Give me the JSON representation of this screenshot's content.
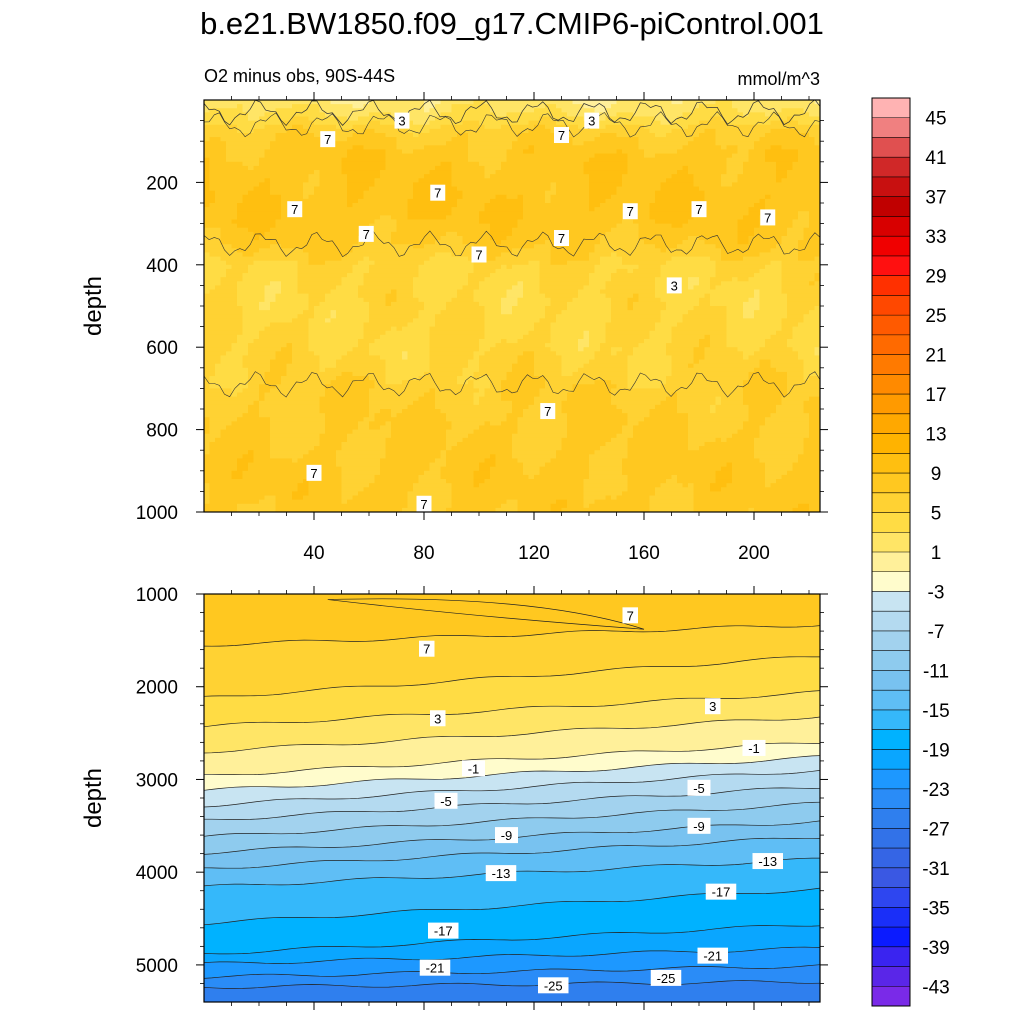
{
  "title": "b.e21.BW1850.f09_g17.CMIP6-piControl.001",
  "chart_data": [
    {
      "type": "heatmap",
      "panel": "top",
      "left_label": "O2 minus obs, 90S-44S",
      "right_label": "mmol/m^3",
      "ylabel": "depth",
      "xlim": [
        0,
        224
      ],
      "ylim": [
        0,
        1000
      ],
      "y_reversed": true,
      "xticks": [
        40,
        80,
        120,
        160,
        200
      ],
      "yticks": [
        200,
        400,
        600,
        800,
        1000
      ],
      "depth_profile": {
        "depth": [
          0,
          25,
          50,
          80,
          120,
          160,
          200,
          240,
          300,
          350,
          380,
          400,
          450,
          500,
          550,
          600,
          650,
          700,
          750,
          800,
          850,
          900,
          950,
          1000
        ],
        "value": [
          1.5,
          2.5,
          4.0,
          6.5,
          7.8,
          8.3,
          8.6,
          8.7,
          8.2,
          7.2,
          6.2,
          5.2,
          4.8,
          4.8,
          4.9,
          5.0,
          5.5,
          6.4,
          6.9,
          7.2,
          7.4,
          7.5,
          7.6,
          7.6
        ]
      },
      "contour_labels": [
        {
          "x": 45,
          "y": 95,
          "text": "7"
        },
        {
          "x": 72,
          "y": 50,
          "text": "3"
        },
        {
          "x": 130,
          "y": 85,
          "text": "7"
        },
        {
          "x": 141,
          "y": 50,
          "text": "3"
        },
        {
          "x": 33,
          "y": 265,
          "text": "7"
        },
        {
          "x": 85,
          "y": 225,
          "text": "7"
        },
        {
          "x": 59,
          "y": 325,
          "text": "7"
        },
        {
          "x": 100,
          "y": 375,
          "text": "7"
        },
        {
          "x": 130,
          "y": 335,
          "text": "7"
        },
        {
          "x": 155,
          "y": 270,
          "text": "7"
        },
        {
          "x": 180,
          "y": 265,
          "text": "7"
        },
        {
          "x": 205,
          "y": 285,
          "text": "7"
        },
        {
          "x": 171,
          "y": 450,
          "text": "3"
        },
        {
          "x": 125,
          "y": 755,
          "text": "7"
        },
        {
          "x": 40,
          "y": 905,
          "text": "7"
        },
        {
          "x": 80,
          "y": 980,
          "text": "7"
        }
      ]
    },
    {
      "type": "heatmap",
      "panel": "bottom",
      "ylabel": "depth",
      "xlim": [
        0,
        224
      ],
      "ylim": [
        1000,
        5400
      ],
      "y_reversed": true,
      "yticks": [
        1000,
        2000,
        3000,
        4000,
        5000
      ],
      "contour_levels": [
        {
          "value": 7,
          "depth_left": 1550,
          "depth_right": 1330
        },
        {
          "value": 5,
          "depth_left": 2120,
          "depth_right": 1670
        },
        {
          "value": 3,
          "depth_left": 2430,
          "depth_right": 2060
        },
        {
          "value": 1,
          "depth_left": 2700,
          "depth_right": 2320
        },
        {
          "value": -1,
          "depth_left": 2960,
          "depth_right": 2600
        },
        {
          "value": -3,
          "depth_left": 3120,
          "depth_right": 2760
        },
        {
          "value": -5,
          "depth_left": 3280,
          "depth_right": 2900
        },
        {
          "value": -7,
          "depth_left": 3440,
          "depth_right": 3080
        },
        {
          "value": -9,
          "depth_left": 3620,
          "depth_right": 3260
        },
        {
          "value": -11,
          "depth_left": 3790,
          "depth_right": 3450
        },
        {
          "value": -13,
          "depth_left": 3960,
          "depth_right": 3620
        },
        {
          "value": -15,
          "depth_left": 4160,
          "depth_right": 3860
        },
        {
          "value": -17,
          "depth_left": 4550,
          "depth_right": 4180
        },
        {
          "value": -19,
          "depth_left": 4880,
          "depth_right": 4560
        },
        {
          "value": -21,
          "depth_left": 4990,
          "depth_right": 4820
        },
        {
          "value": -23,
          "depth_left": 5130,
          "depth_right": 5010
        },
        {
          "value": -25,
          "depth_left": 5240,
          "depth_right": 5180
        }
      ],
      "contour_labels": [
        {
          "x": 155,
          "y": 1230,
          "text": "7"
        },
        {
          "x": 81,
          "y": 1590,
          "text": "7"
        },
        {
          "x": 85,
          "y": 2340,
          "text": "3"
        },
        {
          "x": 185,
          "y": 2210,
          "text": "3"
        },
        {
          "x": 98,
          "y": 2880,
          "text": "-1"
        },
        {
          "x": 200,
          "y": 2660,
          "text": "-1"
        },
        {
          "x": 88,
          "y": 3230,
          "text": "-5"
        },
        {
          "x": 180,
          "y": 3090,
          "text": "-5"
        },
        {
          "x": 110,
          "y": 3600,
          "text": "-9"
        },
        {
          "x": 180,
          "y": 3500,
          "text": "-9"
        },
        {
          "x": 108,
          "y": 4010,
          "text": "-13"
        },
        {
          "x": 205,
          "y": 3880,
          "text": "-13"
        },
        {
          "x": 188,
          "y": 4210,
          "text": "-17"
        },
        {
          "x": 87,
          "y": 4630,
          "text": "-17"
        },
        {
          "x": 84,
          "y": 5030,
          "text": "-21"
        },
        {
          "x": 185,
          "y": 4900,
          "text": "-21"
        },
        {
          "x": 127,
          "y": 5220,
          "text": "-25"
        },
        {
          "x": 168,
          "y": 5140,
          "text": "-25"
        }
      ]
    }
  ],
  "colorbar": {
    "labels": [
      "45",
      "41",
      "37",
      "33",
      "29",
      "25",
      "21",
      "17",
      "13",
      "9",
      "5",
      "1",
      "-3",
      "-7",
      "-11",
      "-15",
      "-19",
      "-23",
      "-27",
      "-31",
      "-35",
      "-39",
      "-43"
    ],
    "levels": [
      47,
      45,
      43,
      41,
      39,
      37,
      35,
      33,
      31,
      29,
      27,
      25,
      23,
      21,
      19,
      17,
      15,
      13,
      11,
      9,
      7,
      5,
      3,
      1,
      -1,
      -3,
      -5,
      -7,
      -9,
      -11,
      -13,
      -15,
      -17,
      -19,
      -21,
      -23,
      -25,
      -27,
      -29,
      -31,
      -33,
      -35,
      -37,
      -39,
      -41,
      -43,
      -45
    ],
    "colors": [
      "#ffb3b3",
      "#f08080",
      "#e05050",
      "#d02828",
      "#c81010",
      "#c00000",
      "#d80000",
      "#f00000",
      "#ff1010",
      "#ff3000",
      "#ff4800",
      "#ff5a00",
      "#ff6a00",
      "#ff7a00",
      "#ff8a00",
      "#ff9a00",
      "#ffa800",
      "#ffb300",
      "#ffbf10",
      "#ffc820",
      "#ffd233",
      "#ffdc44",
      "#ffe566",
      "#fff09a",
      "#fffccc",
      "#c8e4f2",
      "#b4daf0",
      "#a2d2ee",
      "#8ecbee",
      "#78c2f0",
      "#5fbef5",
      "#35b8fa",
      "#00b2ff",
      "#0aa6ff",
      "#1d98ff",
      "#2a8cf7",
      "#2f7fee",
      "#3272e8",
      "#3565e5",
      "#3a58e3",
      "#2e46f0",
      "#1a2ff8",
      "#0b1bff",
      "#3a24f0",
      "#5a26e8",
      "#7a2ae8"
    ]
  }
}
